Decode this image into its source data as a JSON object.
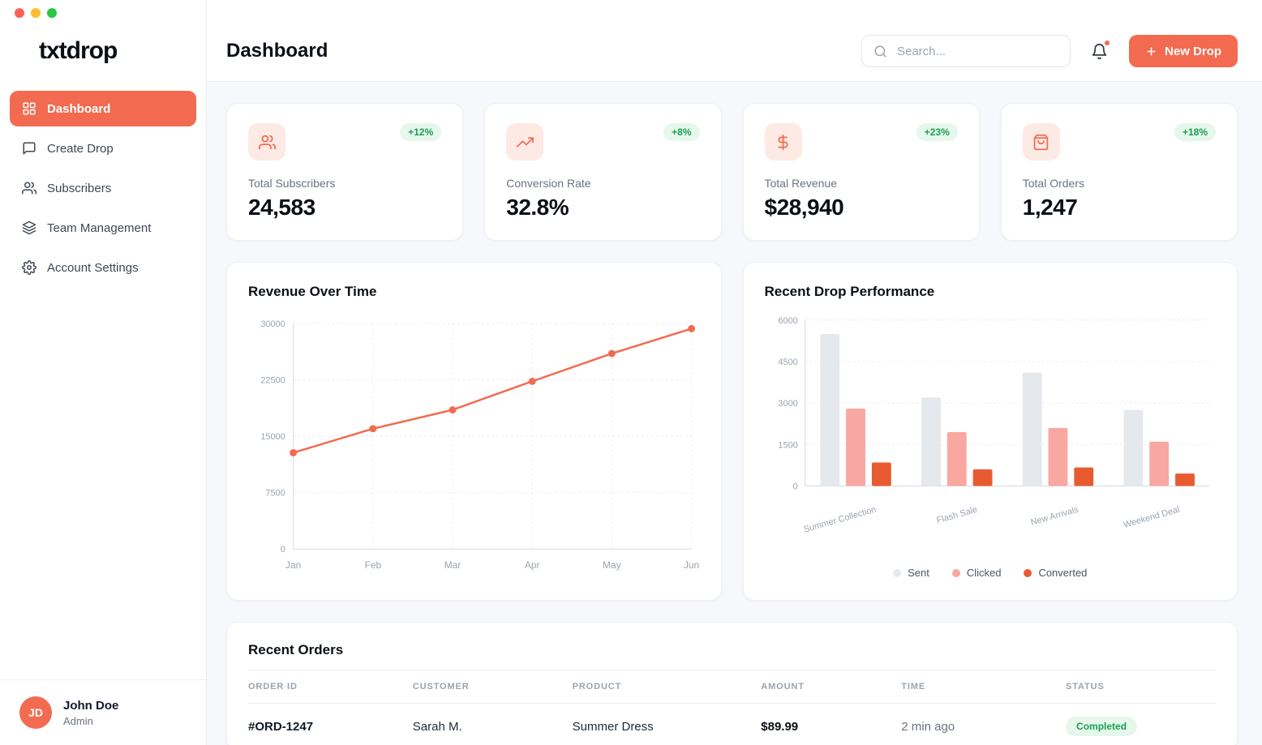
{
  "brand": {
    "logo": "txtdrop"
  },
  "sidebar": {
    "items": [
      {
        "label": "Dashboard",
        "active": true
      },
      {
        "label": "Create Drop",
        "active": false
      },
      {
        "label": "Subscribers",
        "active": false
      },
      {
        "label": "Team Management",
        "active": false
      },
      {
        "label": "Account Settings",
        "active": false
      }
    ],
    "user": {
      "initials": "JD",
      "name": "John Doe",
      "role": "Admin"
    }
  },
  "header": {
    "title": "Dashboard",
    "search_placeholder": "Search...",
    "new_drop_label": "New Drop"
  },
  "stats": [
    {
      "label": "Total Subscribers",
      "value": "24,583",
      "delta": "+12%",
      "icon": "users-icon"
    },
    {
      "label": "Conversion Rate",
      "value": "32.8%",
      "delta": "+8%",
      "icon": "trending-up-icon"
    },
    {
      "label": "Total Revenue",
      "value": "$28,940",
      "delta": "+23%",
      "icon": "dollar-icon"
    },
    {
      "label": "Total Orders",
      "value": "1,247",
      "delta": "+18%",
      "icon": "shopping-bag-icon"
    }
  ],
  "chart_data": [
    {
      "type": "line",
      "title": "Revenue Over Time",
      "x": [
        "Jan",
        "Feb",
        "Mar",
        "Apr",
        "May",
        "Jun"
      ],
      "series": [
        {
          "name": "Revenue",
          "values": [
            12800,
            16000,
            18500,
            22300,
            26000,
            29300
          ]
        }
      ],
      "ylim": [
        0,
        30000
      ],
      "yticks": [
        0,
        7500,
        15000,
        22500,
        30000
      ],
      "line_color": "#f26b50",
      "grid": true,
      "legend": false
    },
    {
      "type": "bar",
      "title": "Recent Drop Performance",
      "categories": [
        "Summer Collection",
        "Flash Sale",
        "New Arrivals",
        "Weekend Deal"
      ],
      "series": [
        {
          "name": "Sent",
          "color": "#e5e8ed",
          "values": [
            5500,
            3200,
            4100,
            2750
          ]
        },
        {
          "name": "Clicked",
          "color": "#f8a8a0",
          "values": [
            2800,
            1950,
            2100,
            1600
          ]
        },
        {
          "name": "Converted",
          "color": "#e85b30",
          "values": [
            850,
            600,
            670,
            450
          ]
        }
      ],
      "ylim": [
        0,
        6000
      ],
      "yticks": [
        0,
        1500,
        3000,
        4500,
        6000
      ],
      "grid": true,
      "legend_position": "bottom"
    }
  ],
  "orders": {
    "title": "Recent Orders",
    "columns": [
      "ORDER ID",
      "CUSTOMER",
      "PRODUCT",
      "AMOUNT",
      "TIME",
      "STATUS"
    ],
    "rows": [
      {
        "order_id": "#ORD-1247",
        "customer": "Sarah M.",
        "product": "Summer Dress",
        "amount": "$89.99",
        "time": "2 min ago",
        "status": "Completed"
      }
    ]
  },
  "colors": {
    "accent": "#f26b50",
    "accent_light": "#fdeae4",
    "positive_text": "#1aa053",
    "positive_bg": "#e6f7ec"
  }
}
